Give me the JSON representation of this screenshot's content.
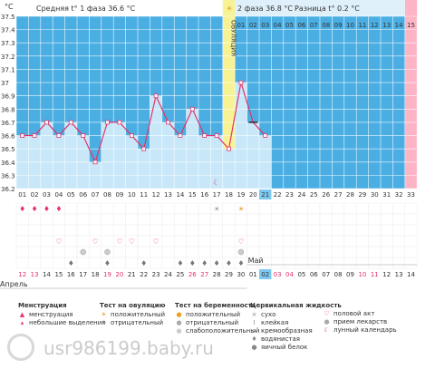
{
  "chart_data": {
    "type": "line",
    "y_unit": "°C",
    "ylim": [
      36.2,
      37.5
    ],
    "yticks": [
      "36.2",
      "36.3",
      "36.4",
      "36.5",
      "36.6",
      "36.7",
      "36.8",
      "36.9",
      "37",
      "37.1",
      "37.2",
      "37.3",
      "37.4",
      "37.5"
    ],
    "phase1_label": "Средняя t° 1 фаза 36.6 °C",
    "phase2_label": "2 фаза 36.8 °C",
    "diff_label": "Разница t° 0.2 °C",
    "ovulation_label": "ОВУЛЯЦИЯ",
    "cycle_days": [
      "01",
      "02",
      "03",
      "04",
      "05",
      "06",
      "07",
      "08",
      "09",
      "10",
      "11",
      "12",
      "13",
      "14",
      "15",
      "16",
      "17",
      "18",
      "19",
      "20",
      "21",
      "22",
      "23",
      "24",
      "25",
      "26",
      "27",
      "28",
      "29",
      "30",
      "31",
      "32",
      "33"
    ],
    "phase2_days": [
      "01",
      "02",
      "03",
      "04",
      "05",
      "06",
      "07",
      "08",
      "09",
      "10",
      "11",
      "12",
      "13",
      "14",
      "15"
    ],
    "dates": [
      "12",
      "13",
      "14",
      "15",
      "16",
      "17",
      "18",
      "19",
      "20",
      "21",
      "22",
      "23",
      "24",
      "25",
      "26",
      "27",
      "28",
      "29",
      "30",
      "01",
      "02",
      "03",
      "04",
      "05",
      "06",
      "07",
      "08",
      "09",
      "10",
      "11",
      "12",
      "13",
      "14"
    ],
    "weekend_date_indices": [
      0,
      1,
      7,
      8,
      14,
      15,
      21,
      22,
      28,
      29
    ],
    "month_april": "Апрель",
    "month_may": "Май",
    "temps": [
      36.6,
      36.6,
      36.7,
      36.6,
      36.7,
      36.6,
      36.4,
      36.7,
      36.7,
      36.6,
      36.5,
      36.9,
      36.7,
      36.6,
      36.8,
      36.6,
      36.6,
      36.5,
      37.0,
      36.7,
      36.6
    ],
    "today_index": 20,
    "ovulation_index": 17,
    "colors": {
      "bg": "#4aaee3",
      "bar": "#c8e8f9",
      "line": "#e2336b",
      "ovulation": "#f7f294",
      "pink": "#fdb5c5",
      "today": "#7cc8f0",
      "weekend": "#e2336b",
      "grid": "#ffffff"
    }
  },
  "markers": {
    "menses_days": [
      0,
      1,
      2,
      3
    ],
    "heart_days": [
      3,
      6,
      8,
      9,
      11,
      18
    ],
    "pill_days": [
      5,
      7,
      18
    ],
    "drop_days": [
      4,
      7,
      10,
      13,
      14,
      15,
      16,
      17,
      18
    ]
  },
  "legend": {
    "menses": {
      "title": "Менструация",
      "items": [
        "менструация",
        "небольшие выделения"
      ]
    },
    "ovtest": {
      "title": "Тест на овуляцию",
      "items": [
        "положительный",
        "отрицательный"
      ]
    },
    "pregtest": {
      "title": "Тест на беременность",
      "items": [
        "положительный",
        "отрицательный",
        "слабоположительный"
      ]
    },
    "mucus": {
      "title": "Цервикальная жидкость",
      "items": [
        "сухо",
        "клейкая",
        "кремообразная",
        "водянистая",
        "яичный белок"
      ]
    },
    "other": {
      "items": [
        "половой акт",
        "прием лекарств",
        "лунный календарь"
      ]
    }
  },
  "watermark": "usr986199.baby.ru"
}
